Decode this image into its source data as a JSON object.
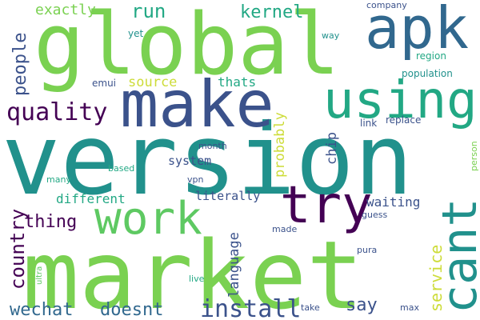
{
  "palette": {
    "dark_purple": "#440154",
    "indigo": "#3b528b",
    "blue": "#31688e",
    "teal": "#21918c",
    "green_teal": "#22a884",
    "green": "#5ec962",
    "lime": "#7ad151",
    "yellow": "#cddc39"
  },
  "words": [
    {
      "id": "version",
      "text": "version"
    },
    {
      "id": "market",
      "text": "market"
    },
    {
      "id": "global",
      "text": "global"
    },
    {
      "id": "make",
      "text": "make"
    },
    {
      "id": "apk",
      "text": "apk"
    },
    {
      "id": "using",
      "text": "using"
    },
    {
      "id": "work",
      "text": "work"
    },
    {
      "id": "try",
      "text": "try"
    },
    {
      "id": "cant",
      "text": "cant"
    },
    {
      "id": "quality",
      "text": "quality"
    },
    {
      "id": "install",
      "text": "install"
    },
    {
      "id": "wechat",
      "text": "wechat"
    },
    {
      "id": "doesnt",
      "text": "doesnt"
    },
    {
      "id": "country",
      "text": "country"
    },
    {
      "id": "thing",
      "text": "thing"
    },
    {
      "id": "people",
      "text": "people"
    },
    {
      "id": "kernel",
      "text": "kernel"
    },
    {
      "id": "run",
      "text": "run"
    },
    {
      "id": "exactly",
      "text": "exactly"
    },
    {
      "id": "source",
      "text": "source"
    },
    {
      "id": "thats",
      "text": "thats"
    },
    {
      "id": "probably",
      "text": "probably"
    },
    {
      "id": "chip",
      "text": "chip"
    },
    {
      "id": "different",
      "text": "different"
    },
    {
      "id": "system",
      "text": "system"
    },
    {
      "id": "literally",
      "text": "literally"
    },
    {
      "id": "waiting",
      "text": "waiting"
    },
    {
      "id": "service",
      "text": "service"
    },
    {
      "id": "say",
      "text": "say"
    },
    {
      "id": "language",
      "text": "language"
    },
    {
      "id": "company",
      "text": "company"
    },
    {
      "id": "way",
      "text": "way"
    },
    {
      "id": "region",
      "text": "region"
    },
    {
      "id": "population",
      "text": "population"
    },
    {
      "id": "replace",
      "text": "replace"
    },
    {
      "id": "link",
      "text": "link"
    },
    {
      "id": "person",
      "text": "person"
    },
    {
      "id": "yet",
      "text": "yet"
    },
    {
      "id": "emui",
      "text": "emui"
    },
    {
      "id": "month",
      "text": "month"
    },
    {
      "id": "based",
      "text": "based"
    },
    {
      "id": "many",
      "text": "many"
    },
    {
      "id": "vpn",
      "text": "vpn"
    },
    {
      "id": "made",
      "text": "made"
    },
    {
      "id": "guess",
      "text": "guess"
    },
    {
      "id": "pura",
      "text": "pura"
    },
    {
      "id": "ultra",
      "text": "ultra"
    },
    {
      "id": "live",
      "text": "live"
    },
    {
      "id": "take",
      "text": "take"
    },
    {
      "id": "max",
      "text": "max"
    }
  ]
}
